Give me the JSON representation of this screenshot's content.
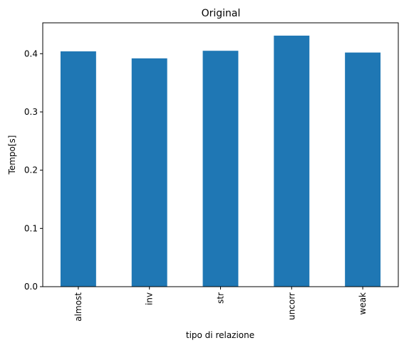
{
  "chart_data": {
    "type": "bar",
    "title": "Original",
    "xlabel": "tipo di relazione",
    "ylabel": "Tempo[s]",
    "categories": [
      "almost",
      "inv",
      "str",
      "uncorr",
      "weak"
    ],
    "values": [
      0.404,
      0.392,
      0.405,
      0.431,
      0.402
    ],
    "ylim": [
      0,
      0.453
    ],
    "yticks": [
      0.0,
      0.1,
      0.2,
      0.3,
      0.4
    ],
    "ytick_labels": [
      "0.0",
      "0.1",
      "0.2",
      "0.3",
      "0.4"
    ],
    "bar_color": "#1f77b4",
    "grid": false
  }
}
